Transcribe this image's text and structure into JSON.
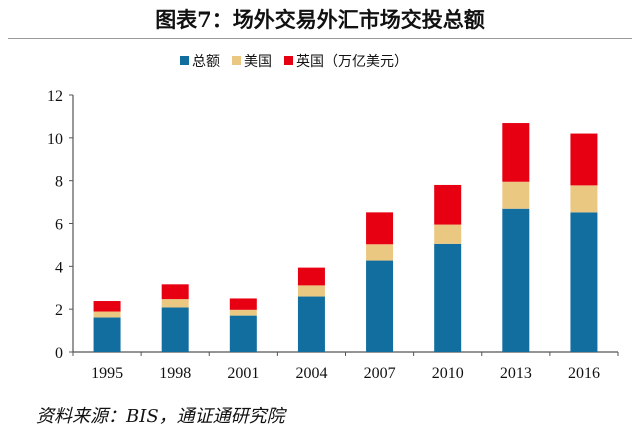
{
  "title": "图表7：场外交易外汇市场交投总额",
  "source": "资料来源：BIS，通证通研究院",
  "chart_data": {
    "type": "bar",
    "stacked": true,
    "categories": [
      "1995",
      "1998",
      "2001",
      "2004",
      "2007",
      "2010",
      "2013",
      "2016"
    ],
    "series": [
      {
        "name": "总额",
        "color": "#136ea0",
        "values": [
          1.61,
          2.08,
          1.7,
          2.59,
          4.27,
          5.05,
          6.69,
          6.52
        ]
      },
      {
        "name": "美国",
        "color": "#ebc882",
        "values": [
          0.28,
          0.39,
          0.27,
          0.52,
          0.76,
          0.9,
          1.26,
          1.26
        ]
      },
      {
        "name": "英国",
        "color": "#e60012",
        "values": [
          0.49,
          0.69,
          0.53,
          0.83,
          1.49,
          1.85,
          2.74,
          2.42
        ]
      }
    ],
    "legend_suffix": "（万亿美元）",
    "legend_position": "top",
    "ylim": [
      0,
      12
    ],
    "yticks": [
      "0",
      "2",
      "4",
      "6",
      "8",
      "10",
      "12"
    ],
    "grid": false
  }
}
